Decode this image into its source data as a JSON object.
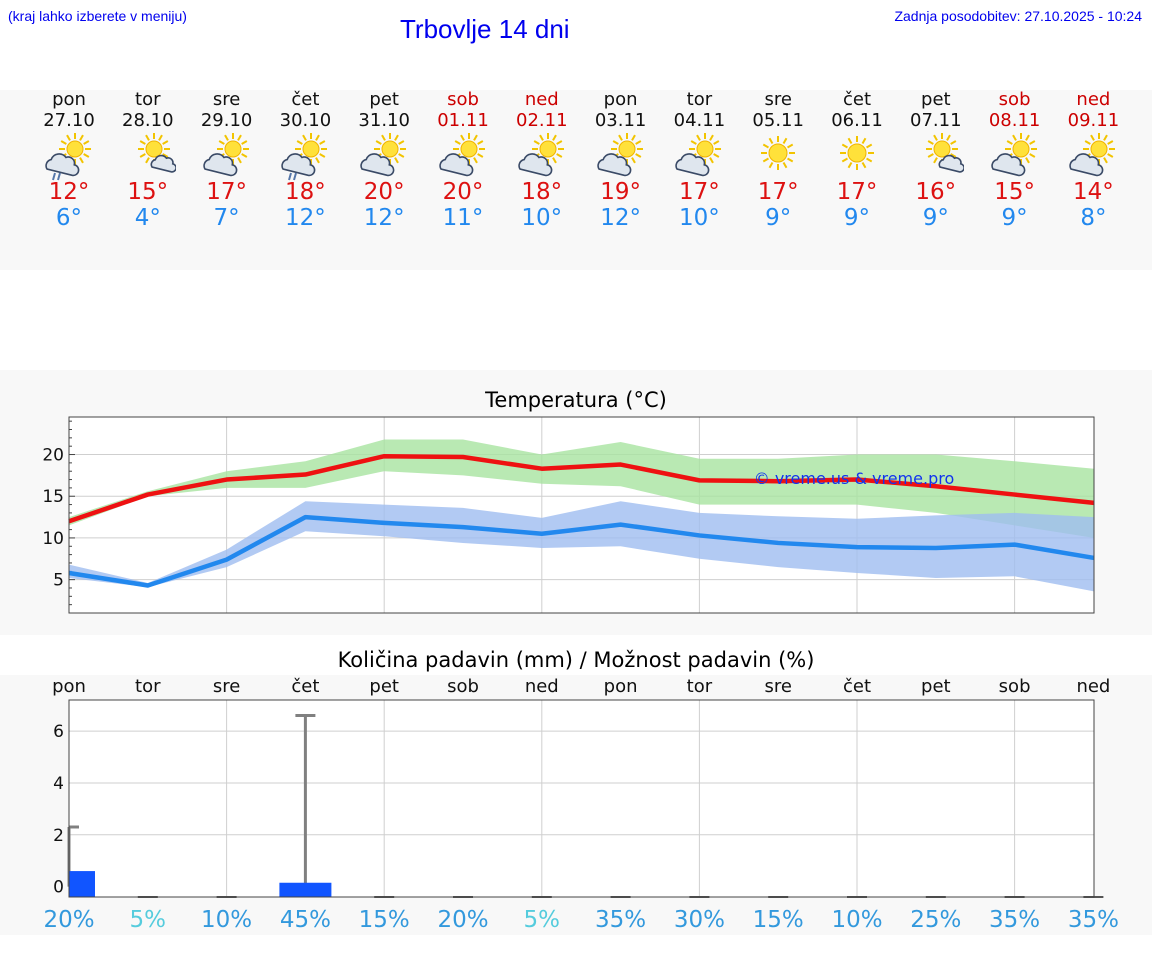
{
  "header": {
    "hint": "(kraj lahko izberete v meniju)",
    "title": "Trbovlje 14 dni",
    "updated": "Zadnja posodobitev: 27.10.2025 - 10:24"
  },
  "days": [
    {
      "name": "pon",
      "date": "27.10",
      "weekend": false,
      "icon": "rain-cloud-sun-icon",
      "max": "12°",
      "min": "6°"
    },
    {
      "name": "tor",
      "date": "28.10",
      "weekend": false,
      "icon": "sun-small-cloud-icon",
      "max": "15°",
      "min": "4°"
    },
    {
      "name": "sre",
      "date": "29.10",
      "weekend": false,
      "icon": "sun-cloud-icon",
      "max": "17°",
      "min": "7°"
    },
    {
      "name": "čet",
      "date": "30.10",
      "weekend": false,
      "icon": "rain-cloud-sun-icon",
      "max": "18°",
      "min": "12°"
    },
    {
      "name": "pet",
      "date": "31.10",
      "weekend": false,
      "icon": "sun-cloud-icon",
      "max": "20°",
      "min": "12°"
    },
    {
      "name": "sob",
      "date": "01.11",
      "weekend": true,
      "icon": "sun-cloud-icon",
      "max": "20°",
      "min": "11°"
    },
    {
      "name": "ned",
      "date": "02.11",
      "weekend": true,
      "icon": "sun-cloud-icon",
      "max": "18°",
      "min": "10°"
    },
    {
      "name": "pon",
      "date": "03.11",
      "weekend": false,
      "icon": "sun-cloud-icon",
      "max": "19°",
      "min": "12°"
    },
    {
      "name": "tor",
      "date": "04.11",
      "weekend": false,
      "icon": "sun-cloud-icon",
      "max": "17°",
      "min": "10°"
    },
    {
      "name": "sre",
      "date": "05.11",
      "weekend": false,
      "icon": "sun-icon",
      "max": "17°",
      "min": "9°"
    },
    {
      "name": "čet",
      "date": "06.11",
      "weekend": false,
      "icon": "sun-icon",
      "max": "17°",
      "min": "9°"
    },
    {
      "name": "pet",
      "date": "07.11",
      "weekend": false,
      "icon": "sun-small-cloud-icon",
      "max": "16°",
      "min": "9°"
    },
    {
      "name": "sob",
      "date": "08.11",
      "weekend": true,
      "icon": "sun-cloud-icon",
      "max": "15°",
      "min": "9°"
    },
    {
      "name": "ned",
      "date": "09.11",
      "weekend": true,
      "icon": "sun-cloud-icon",
      "max": "14°",
      "min": "8°"
    }
  ],
  "colors": {
    "max_line": "#ee1111",
    "min_line": "#2288ee",
    "max_band": "#a8e4a0",
    "min_band": "#9fbdf0",
    "bar": "#1155ff",
    "whisker": "#808080",
    "pct_high": "#3399dd",
    "pct_low": "#55ccdd"
  },
  "chart_data": [
    {
      "type": "line",
      "title": "Temperatura (°C)",
      "watermark": "© vreme.us & vreme.pro",
      "x": [
        "pon",
        "tor",
        "sre",
        "čet",
        "pet",
        "sob",
        "ned",
        "pon",
        "tor",
        "sre",
        "čet",
        "pet",
        "sob",
        "ned"
      ],
      "ylim": [
        1,
        24.5
      ],
      "yticks": [
        5,
        10,
        15,
        20
      ],
      "grid": true,
      "series": [
        {
          "values": [
            12,
            15.2,
            17,
            17.6,
            19.8,
            19.7,
            18.3,
            18.8,
            16.9,
            16.8,
            17.0,
            16.2,
            15.2,
            14.2
          ],
          "band_low": [
            11.5,
            15.0,
            16.0,
            16.0,
            18.0,
            17.5,
            16.5,
            16.2,
            14.0,
            14.0,
            14.0,
            13.0,
            11.5,
            10.0
          ],
          "band_high": [
            12.5,
            15.6,
            18.0,
            19.2,
            21.8,
            21.8,
            20.0,
            21.5,
            19.5,
            19.5,
            20.0,
            20.0,
            19.2,
            18.3
          ]
        },
        {
          "values": [
            5.8,
            4.3,
            7.4,
            12.5,
            11.8,
            11.3,
            10.5,
            11.6,
            10.3,
            9.4,
            8.9,
            8.8,
            9.2,
            7.6
          ],
          "band_low": [
            5.2,
            4.1,
            6.5,
            10.8,
            10.2,
            9.4,
            8.8,
            9.0,
            7.5,
            6.5,
            5.8,
            5.2,
            5.4,
            3.6
          ],
          "band_high": [
            6.8,
            4.6,
            8.6,
            14.4,
            14.0,
            13.6,
            12.4,
            14.4,
            13.0,
            12.6,
            12.3,
            12.7,
            13.0,
            12.5
          ]
        }
      ]
    },
    {
      "type": "bar",
      "title": "Količina padavin (mm) / Možnost padavin (%)",
      "categories": [
        "pon",
        "tor",
        "sre",
        "čet",
        "pet",
        "sob",
        "ned",
        "pon",
        "tor",
        "sre",
        "čet",
        "pet",
        "sob",
        "ned"
      ],
      "values": [
        0.6,
        0,
        0,
        0.15,
        0,
        0,
        0,
        0,
        0,
        0,
        0,
        0,
        0,
        0
      ],
      "whisker_max": [
        2.3,
        0,
        0,
        6.6,
        0,
        0,
        0,
        0,
        0,
        0,
        0,
        0,
        0,
        0
      ],
      "chance": [
        "20%",
        "5%",
        "10%",
        "45%",
        "15%",
        "20%",
        "5%",
        "35%",
        "30%",
        "15%",
        "10%",
        "25%",
        "35%",
        "35%"
      ],
      "ylim": [
        -0.4,
        7.2
      ],
      "yticks": [
        0,
        2,
        4,
        6
      ],
      "grid": true
    }
  ]
}
